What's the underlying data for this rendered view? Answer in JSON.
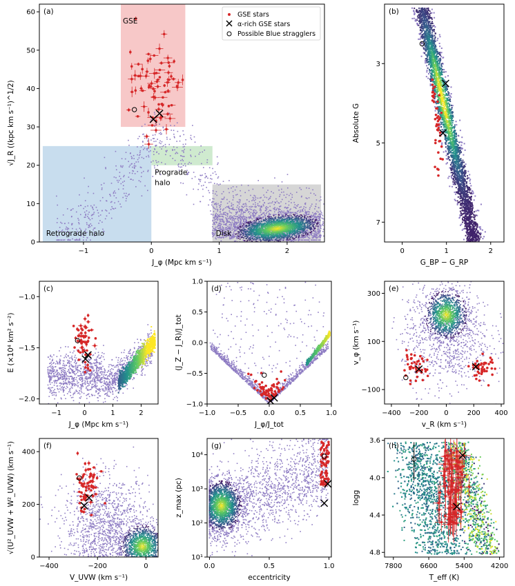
{
  "chart_data": [
    {
      "id": "a",
      "type": "scatter",
      "panel_label": "(a)",
      "xlabel": "J_φ (Mpc km s⁻¹)",
      "ylabel": "√J_R ((kpc km s⁻¹)^1/2)",
      "xlim": [
        -1.65,
        2.55
      ],
      "ylim": [
        0,
        62
      ],
      "xticks": [
        -1,
        0,
        1,
        2
      ],
      "xtick_labels": [
        "−1",
        "0",
        "1",
        "2"
      ],
      "yticks": [
        0,
        10,
        20,
        30,
        40,
        50,
        60
      ],
      "ytick_labels": [
        "0",
        "10",
        "20",
        "30",
        "40",
        "50",
        "60"
      ],
      "regions": [
        {
          "name": "GSE",
          "x": [
            -0.45,
            0.5
          ],
          "y": [
            30,
            62
          ],
          "color": "#f4b6b6",
          "label_color": "#d62728"
        },
        {
          "name": "Retrograde halo",
          "x": [
            -1.6,
            0.0
          ],
          "y": [
            0,
            25
          ],
          "color": "#b5d2e8",
          "label_color": "#1f77b4"
        },
        {
          "name": "Prograde halo",
          "x": [
            0.0,
            0.9
          ],
          "y": [
            20,
            25
          ],
          "color": "#bfe3bf",
          "label_color": "#2ca02c"
        },
        {
          "name": "Disk",
          "x": [
            0.9,
            2.5
          ],
          "y": [
            0,
            15
          ],
          "color": "#c8c8c8",
          "label_color": "#000000"
        }
      ],
      "region_labels": [
        "GSE",
        "Retrograde halo",
        "Prograde halo",
        "Disk"
      ],
      "legend": {
        "placement": "top-right",
        "entries": [
          "GSE stars",
          "α-rich GSE stars",
          "Possible Blue stragglers"
        ]
      },
      "gse_stars_center": [
        0.0,
        40
      ],
      "gse_stars_spread": [
        0.22,
        6
      ],
      "alpha_rich": [
        [
          0.12,
          33.5
        ],
        [
          0.03,
          32
        ]
      ],
      "blue_stragglers": [
        [
          -0.25,
          34.5
        ]
      ],
      "density_peak": [
        1.85,
        3
      ]
    },
    {
      "id": "b",
      "type": "scatter",
      "panel_label": "(b)",
      "xlabel": "G_BP − G_RP",
      "ylabel": "Absolute G",
      "xlim": [
        -0.4,
        2.3
      ],
      "ylim": [
        7.5,
        1.5
      ],
      "y_inverted": true,
      "xticks": [
        0,
        1,
        2
      ],
      "xtick_labels": [
        "0",
        "1",
        "2"
      ],
      "yticks": [
        3,
        5,
        7
      ],
      "ytick_labels": [
        "3",
        "5",
        "7"
      ],
      "alpha_rich": [
        [
          0.98,
          3.5
        ],
        [
          0.92,
          4.75
        ]
      ],
      "blue_stragglers": [
        [
          0.45,
          2.5
        ]
      ]
    },
    {
      "id": "c",
      "type": "scatter",
      "panel_label": "(c)",
      "xlabel": "J_φ (Mpc km s⁻¹)",
      "ylabel": "E (×10⁴ km² s⁻²)",
      "xlim": [
        -1.6,
        2.6
      ],
      "ylim": [
        -2.05,
        -0.85
      ],
      "xticks": [
        -1,
        0,
        1,
        2
      ],
      "xtick_labels": [
        "−1",
        "0",
        "1",
        "2"
      ],
      "yticks": [
        -2.0,
        -1.5,
        -1.0
      ],
      "ytick_labels": [
        "−2.0",
        "−1.5",
        "−1.0"
      ],
      "alpha_rich": [
        [
          0.12,
          -1.57
        ],
        [
          0.03,
          -1.61
        ]
      ],
      "blue_stragglers": [
        [
          -0.25,
          -1.43
        ]
      ]
    },
    {
      "id": "d",
      "type": "scatter",
      "panel_label": "(d)",
      "xlabel": "J_φ/J_tot",
      "ylabel": "(J_Z − J_R)/J_tot",
      "xlim": [
        -1.0,
        1.0
      ],
      "ylim": [
        -1.0,
        1.0
      ],
      "xticks": [
        -1.0,
        -0.5,
        0.0,
        0.5,
        1.0
      ],
      "xtick_labels": [
        "−1.0",
        "−0.5",
        "0.0",
        "0.5",
        "1.0"
      ],
      "yticks": [
        -1.0,
        -0.5,
        0.0,
        0.5,
        1.0
      ],
      "ytick_labels": [
        "−1.0",
        "−0.5",
        "0.0",
        "0.5",
        "1.0"
      ],
      "alpha_rich": [
        [
          0.08,
          -0.9
        ],
        [
          0.02,
          -0.95
        ]
      ],
      "blue_stragglers": [
        [
          -0.08,
          -0.53
        ]
      ]
    },
    {
      "id": "e",
      "type": "scatter",
      "panel_label": "(e)",
      "xlabel": "v_R (km s⁻¹)",
      "ylabel": "v_φ (km s⁻¹)",
      "xlim": [
        -450,
        420
      ],
      "ylim": [
        -160,
        350
      ],
      "xticks": [
        -400,
        -200,
        0,
        200,
        400
      ],
      "xtick_labels": [
        "−400",
        "−200",
        "0",
        "200",
        "400"
      ],
      "yticks": [
        -100,
        100,
        300
      ],
      "ytick_labels": [
        "−100",
        "100",
        "300"
      ],
      "alpha_rich": [
        [
          -200,
          -15
        ],
        [
          215,
          -5
        ]
      ],
      "blue_stragglers": [
        [
          -295,
          -50
        ]
      ]
    },
    {
      "id": "f",
      "type": "scatter",
      "panel_label": "(f)",
      "xlabel": "V_UVW (km s⁻¹)",
      "ylabel": "√(U²_UVW + W²_UVW) (km s⁻¹)",
      "xlim": [
        -440,
        50
      ],
      "ylim": [
        0,
        450
      ],
      "xticks": [
        -400,
        -200,
        0
      ],
      "xtick_labels": [
        "−400",
        "−200",
        "0"
      ],
      "yticks": [
        0,
        200,
        400
      ],
      "ytick_labels": [
        "0",
        "200",
        "400"
      ],
      "alpha_rich": [
        [
          -235,
          225
        ],
        [
          -255,
          195
        ]
      ],
      "blue_stragglers": [
        [
          -275,
          300
        ]
      ]
    },
    {
      "id": "g",
      "type": "scatter",
      "panel_label": "(g)",
      "xlabel": "eccentricity",
      "ylabel": "z_max (pc)",
      "xlim": [
        -0.02,
        1.02
      ],
      "ylim": [
        10,
        30000
      ],
      "yscale": "log",
      "xticks": [
        0.0,
        0.5,
        1.0
      ],
      "xtick_labels": [
        "0.0",
        "0.5",
        "1.0"
      ],
      "yticks": [
        10,
        100,
        1000,
        10000
      ],
      "ytick_labels": [
        "10¹",
        "10²",
        "10³",
        "10⁴"
      ],
      "alpha_rich": [
        [
          0.99,
          1400
        ],
        [
          0.96,
          380
        ]
      ],
      "blue_stragglers": [
        [
          0.96,
          9000
        ]
      ]
    },
    {
      "id": "h",
      "type": "scatter",
      "panel_label": "(h)",
      "xlabel": "T_eff (K)",
      "ylabel": "logg",
      "xlim": [
        8100,
        4050
      ],
      "ylim": [
        4.85,
        3.58
      ],
      "x_inverted": true,
      "y_inverted": true,
      "xticks": [
        7800,
        6600,
        5400,
        4200
      ],
      "xtick_labels": [
        "7800",
        "6600",
        "5400",
        "4200"
      ],
      "yticks": [
        3.6,
        4.0,
        4.4,
        4.8
      ],
      "ytick_labels": [
        "3.6",
        "4.0",
        "4.4",
        "4.8"
      ],
      "alpha_rich": [
        [
          5450,
          3.76
        ],
        [
          5650,
          4.31
        ]
      ],
      "blue_stragglers": [
        [
          7100,
          3.8
        ]
      ]
    }
  ],
  "colors": {
    "gse": "#d62728",
    "field": "#8e7cc3",
    "viridis_low": "#3e4a89",
    "viridis_mid": "#26a784",
    "viridis_high": "#fde725"
  }
}
